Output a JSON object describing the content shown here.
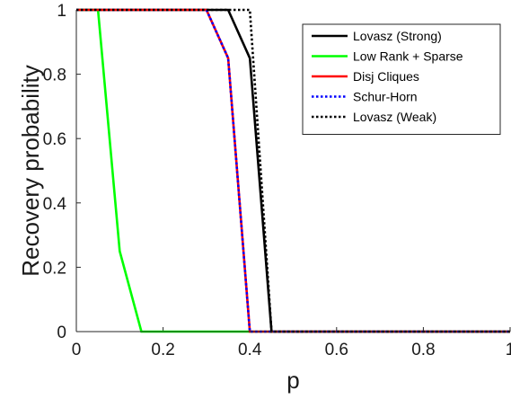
{
  "chart_data": {
    "type": "line",
    "title": "",
    "xlabel": "p",
    "ylabel": "Recovery probability",
    "xlim": [
      0,
      1
    ],
    "ylim": [
      0,
      1
    ],
    "xticks": [
      0,
      0.2,
      0.4,
      0.6,
      0.8,
      1
    ],
    "yticks": [
      0,
      0.2,
      0.4,
      0.6,
      0.8,
      1
    ],
    "xtick_labels": [
      "0",
      "0.2",
      "0.4",
      "0.6",
      "0.8",
      "1"
    ],
    "ytick_labels": [
      "0",
      "0.2",
      "0.4",
      "0.6",
      "0.8",
      "1"
    ],
    "grid": false,
    "legend_position": "top-right",
    "series": [
      {
        "name": "Lovasz (Strong)",
        "color": "#000000",
        "dash": "solid",
        "x": [
          0,
          0.05,
          0.1,
          0.15,
          0.2,
          0.25,
          0.3,
          0.35,
          0.4,
          0.45,
          0.5,
          0.55,
          0.6,
          0.65,
          0.7,
          0.75,
          0.8,
          0.85,
          0.9,
          0.95,
          1
        ],
        "y": [
          1,
          1,
          1,
          1,
          1,
          1,
          1,
          1,
          0.85,
          0,
          0,
          0,
          0,
          0,
          0,
          0,
          0,
          0,
          0,
          0,
          0
        ]
      },
      {
        "name": "Low Rank + Sparse",
        "color": "#00ff00",
        "dash": "solid",
        "x": [
          0,
          0.05,
          0.1,
          0.15,
          0.2,
          0.25,
          0.3,
          0.35,
          0.4,
          0.45,
          0.5,
          0.55,
          0.6,
          0.65,
          0.7,
          0.75,
          0.8,
          0.85,
          0.9,
          0.95,
          1
        ],
        "y": [
          1,
          1,
          0.25,
          0,
          0,
          0,
          0,
          0,
          0,
          0,
          0,
          0,
          0,
          0,
          0,
          0,
          0,
          0,
          0,
          0,
          0
        ]
      },
      {
        "name": "Disj Cliques",
        "color": "#ff0000",
        "dash": "solid",
        "x": [
          0,
          0.05,
          0.1,
          0.15,
          0.2,
          0.25,
          0.3,
          0.35,
          0.4,
          0.45,
          0.5,
          0.55,
          0.6,
          0.65,
          0.7,
          0.75,
          0.8,
          0.85,
          0.9,
          0.95,
          1
        ],
        "y": [
          1,
          1,
          1,
          1,
          1,
          1,
          1,
          0.85,
          0,
          0,
          0,
          0,
          0,
          0,
          0,
          0,
          0,
          0,
          0,
          0,
          0
        ]
      },
      {
        "name": "Schur-Horn",
        "color": "#0000ff",
        "dash": "dotted",
        "x": [
          0,
          0.05,
          0.1,
          0.15,
          0.2,
          0.25,
          0.3,
          0.35,
          0.4,
          0.45,
          0.5,
          0.55,
          0.6,
          0.65,
          0.7,
          0.75,
          0.8,
          0.85,
          0.9,
          0.95,
          1
        ],
        "y": [
          1,
          1,
          1,
          1,
          1,
          1,
          1,
          0.85,
          0,
          0,
          0,
          0,
          0,
          0,
          0,
          0,
          0,
          0,
          0,
          0,
          0
        ]
      },
      {
        "name": "Lovasz (Weak)",
        "color": "#000000",
        "dash": "dotted",
        "x": [
          0,
          0.05,
          0.1,
          0.15,
          0.2,
          0.25,
          0.3,
          0.35,
          0.4,
          0.45,
          0.5,
          0.55,
          0.6,
          0.65,
          0.7,
          0.75,
          0.8,
          0.85,
          0.9,
          0.95,
          1
        ],
        "y": [
          1,
          1,
          1,
          1,
          1,
          1,
          1,
          1,
          1,
          0,
          0,
          0,
          0,
          0,
          0,
          0,
          0,
          0,
          0,
          0,
          0
        ]
      }
    ]
  }
}
